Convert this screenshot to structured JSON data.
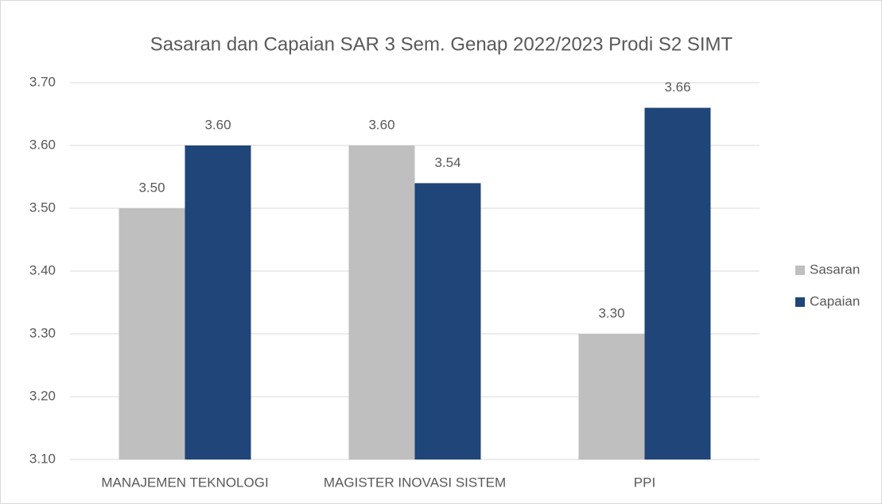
{
  "chart_data": {
    "type": "bar",
    "title": "Sasaran dan Capaian SAR 3 Sem. Genap 2022/2023 Prodi S2 SIMT",
    "categories": [
      "MANAJEMEN TEKNOLOGI",
      "MAGISTER INOVASI SISTEM",
      "PPI"
    ],
    "series": [
      {
        "name": "Sasaran",
        "color": "#bfbfbf",
        "values": [
          3.5,
          3.6,
          3.3
        ],
        "value_labels": [
          "3.50",
          "3.60",
          "3.30"
        ]
      },
      {
        "name": "Capaian",
        "color": "#1f4579",
        "values": [
          3.6,
          3.54,
          3.66
        ],
        "value_labels": [
          "3.60",
          "3.54",
          "3.66"
        ]
      }
    ],
    "ylim": [
      3.1,
      3.7
    ],
    "yticks": [
      {
        "value": 3.1,
        "label": "3.10"
      },
      {
        "value": 3.2,
        "label": "3.20"
      },
      {
        "value": 3.3,
        "label": "3.30"
      },
      {
        "value": 3.4,
        "label": "3.40"
      },
      {
        "value": 3.5,
        "label": "3.50"
      },
      {
        "value": 3.6,
        "label": "3.60"
      },
      {
        "value": 3.7,
        "label": "3.70"
      }
    ],
    "grid": true,
    "legend": "right"
  }
}
